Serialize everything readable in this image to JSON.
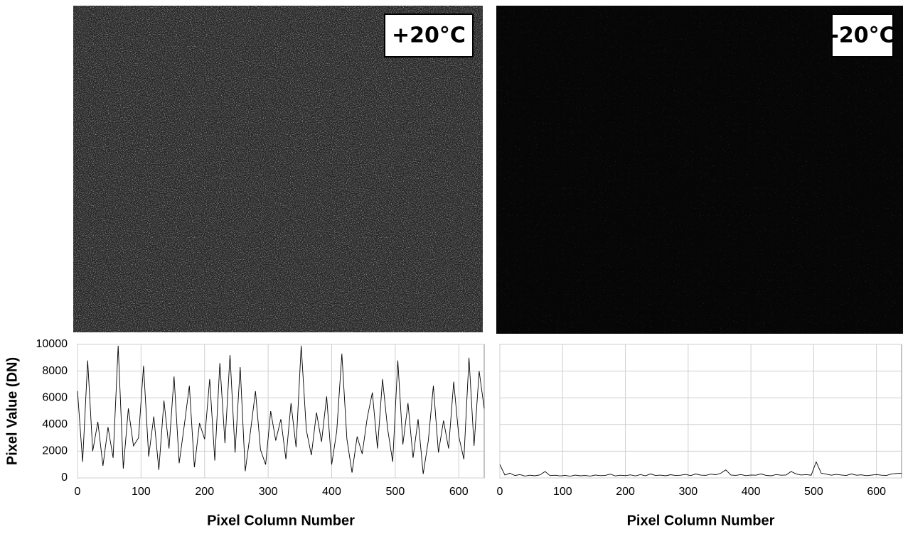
{
  "chart_data": [
    {
      "type": "line",
      "panel_label": "+20°C",
      "xlabel": "Pixel Column Number",
      "ylabel": "Pixel Value (DN)",
      "color": "#000000",
      "x": [
        0,
        8,
        16,
        24,
        32,
        40,
        48,
        56,
        64,
        72,
        80,
        88,
        96,
        104,
        112,
        120,
        128,
        136,
        144,
        152,
        160,
        168,
        176,
        184,
        192,
        200,
        208,
        216,
        224,
        232,
        240,
        248,
        256,
        264,
        272,
        280,
        288,
        296,
        304,
        312,
        320,
        328,
        336,
        344,
        352,
        360,
        368,
        376,
        384,
        392,
        400,
        408,
        416,
        424,
        432,
        440,
        448,
        456,
        464,
        472,
        480,
        488,
        496,
        504,
        512,
        520,
        528,
        536,
        544,
        552,
        560,
        568,
        576,
        584,
        592,
        600,
        608,
        616,
        624,
        632,
        640
      ],
      "values": [
        6500,
        1200,
        8800,
        2000,
        4200,
        900,
        3800,
        1500,
        9900,
        700,
        5200,
        2400,
        3000,
        8400,
        1600,
        4600,
        600,
        5800,
        2200,
        7600,
        1100,
        3900,
        6900,
        800,
        4100,
        2900,
        7400,
        1300,
        8600,
        2600,
        9200,
        1900,
        8300,
        500,
        3400,
        6500,
        2100,
        1000,
        5000,
        2800,
        4400,
        1400,
        5600,
        2300,
        9900,
        3600,
        1700,
        4900,
        2700,
        6100,
        1000,
        3500,
        9300,
        2900,
        400,
        3100,
        1800,
        4500,
        6400,
        2200,
        7400,
        3700,
        1200,
        8800,
        2500,
        5600,
        1500,
        4400,
        300,
        2800,
        6900,
        1900,
        4300,
        2200,
        7200,
        3100,
        1400,
        9000,
        2400,
        8000,
        5200
      ],
      "xlim": [
        0,
        640
      ],
      "ylim": [
        0,
        10000
      ],
      "xticks": [
        0,
        100,
        200,
        300,
        400,
        500,
        600
      ],
      "yticks": [
        0,
        2000,
        4000,
        6000,
        8000,
        10000
      ],
      "ytick_labels": true,
      "grid": true
    },
    {
      "type": "line",
      "panel_label": "-20°C",
      "xlabel": "Pixel Column Number",
      "color": "#000000",
      "x": [
        0,
        8,
        16,
        24,
        32,
        40,
        48,
        56,
        64,
        72,
        80,
        88,
        96,
        104,
        112,
        120,
        128,
        136,
        144,
        152,
        160,
        168,
        176,
        184,
        192,
        200,
        208,
        216,
        224,
        232,
        240,
        248,
        256,
        264,
        272,
        280,
        288,
        296,
        304,
        312,
        320,
        328,
        336,
        344,
        352,
        360,
        368,
        376,
        384,
        392,
        400,
        408,
        416,
        424,
        432,
        440,
        448,
        456,
        464,
        472,
        480,
        488,
        496,
        504,
        512,
        520,
        528,
        536,
        544,
        552,
        560,
        568,
        576,
        584,
        592,
        600,
        608,
        616,
        624,
        632,
        640
      ],
      "values": [
        1000,
        220,
        350,
        180,
        250,
        140,
        200,
        160,
        230,
        480,
        170,
        200,
        150,
        190,
        130,
        210,
        160,
        180,
        140,
        220,
        170,
        190,
        280,
        150,
        200,
        170,
        230,
        150,
        250,
        160,
        300,
        180,
        210,
        160,
        240,
        180,
        200,
        260,
        170,
        300,
        210,
        190,
        280,
        240,
        350,
        600,
        220,
        190,
        250,
        170,
        220,
        200,
        300,
        190,
        160,
        250,
        200,
        220,
        480,
        300,
        220,
        250,
        200,
        1200,
        350,
        280,
        200,
        260,
        220,
        180,
        300,
        200,
        230,
        170,
        210,
        250,
        200,
        180,
        300,
        330,
        350
      ],
      "xlim": [
        0,
        640
      ],
      "ylim": [
        0,
        10000
      ],
      "xticks": [
        0,
        100,
        200,
        300,
        400,
        500,
        600
      ],
      "yticks": [
        0,
        2000,
        4000,
        6000,
        8000,
        10000
      ],
      "ytick_labels": false,
      "grid": true
    }
  ]
}
